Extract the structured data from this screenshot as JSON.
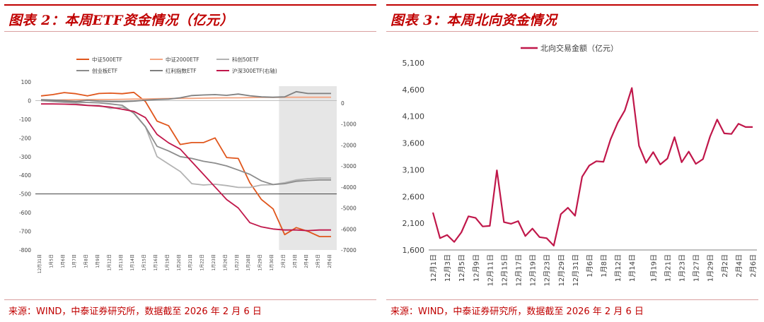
{
  "panels": {
    "left": {
      "title": "图表 2：本周ETF资金情况（亿元）"
    },
    "right": {
      "title": "图表 3：本周北向资金情况"
    }
  },
  "footer": {
    "source": "来源：WIND，中泰证券研究所，数据截至 2026 年 2 月 6 日"
  },
  "colors": {
    "accent": "#c00000",
    "divider": "#d9a0a0",
    "shade": "#e6e6e6"
  },
  "chart_data": [
    {
      "type": "line",
      "title": "",
      "x": [
        "12月31日",
        "1月5日",
        "1月6日",
        "1月7日",
        "1月8日",
        "1月9日",
        "1月12日",
        "1月13日",
        "1月14日",
        "1月15日",
        "1月16日",
        "1月19日",
        "1月20日",
        "1月21日",
        "1月22日",
        "1月23日",
        "1月26日",
        "1月27日",
        "1月28日",
        "1月29日",
        "1月30日",
        "2月2日",
        "2月3日",
        "2月4日",
        "2月5日",
        "2月6日"
      ],
      "y_left": {
        "ylim": [
          -800,
          100
        ],
        "ticks": [
          100,
          0,
          -100,
          -200,
          -300,
          -400,
          -500,
          -600,
          -700,
          -800
        ]
      },
      "y_right": {
        "ylim": [
          -7000,
          1000
        ],
        "ticks": [
          0,
          -1000,
          -2000,
          -3000,
          -4000,
          -5000,
          -6000,
          -7000
        ]
      },
      "shaded_x_range": [
        "2月2日",
        "2月6日"
      ],
      "legend_position": "top",
      "series": [
        {
          "name": "中证500ETF",
          "axis": "left",
          "color": "#e0561c",
          "values": [
            25,
            32,
            43,
            37,
            25,
            38,
            40,
            37,
            44,
            -5,
            -110,
            -135,
            -235,
            -225,
            -225,
            -200,
            -305,
            -310,
            -440,
            -530,
            -580,
            -718,
            -680,
            -700,
            -728,
            -728
          ]
        },
        {
          "name": "中证2000ETF",
          "axis": "left",
          "color": "#f4a582",
          "values": [
            0,
            2,
            4,
            5,
            5,
            6,
            6,
            7,
            8,
            9,
            10,
            11,
            12,
            12,
            13,
            14,
            15,
            15,
            16,
            17,
            17,
            18,
            18,
            18,
            18,
            18
          ]
        },
        {
          "name": "科创50ETF",
          "axis": "left",
          "color": "#b3b3b3",
          "values": [
            0,
            -5,
            -10,
            -15,
            -25,
            -25,
            -42,
            -35,
            -65,
            -140,
            -300,
            -340,
            -380,
            -445,
            -452,
            -448,
            -455,
            -465,
            -465,
            -452,
            -450,
            -440,
            -425,
            -418,
            -415,
            -415
          ]
        },
        {
          "name": "创业板ETF",
          "axis": "left",
          "color": "#8c8c8c",
          "values": [
            0,
            -2,
            -5,
            -8,
            -10,
            -12,
            -18,
            -25,
            -68,
            -140,
            -245,
            -270,
            -300,
            -310,
            -325,
            -335,
            -350,
            -372,
            -395,
            -430,
            -450,
            -445,
            -432,
            -428,
            -425,
            -425
          ]
        },
        {
          "name": "红利指数ETF",
          "axis": "left",
          "color": "#7f7f7f",
          "values": [
            5,
            3,
            0,
            -5,
            2,
            -3,
            -5,
            -6,
            -3,
            2,
            6,
            8,
            15,
            27,
            30,
            32,
            28,
            35,
            26,
            20,
            18,
            20,
            48,
            38,
            38,
            38
          ]
        },
        {
          "name": "沪深300ETF(右轴)",
          "axis": "right",
          "color": "#c0174a",
          "values": [
            -50,
            -50,
            -60,
            -80,
            -120,
            -150,
            -200,
            -300,
            -400,
            -700,
            -1500,
            -1900,
            -2200,
            -2800,
            -3400,
            -4000,
            -4600,
            -5000,
            -5700,
            -5900,
            -6000,
            -6050,
            -6050,
            -6080,
            -6050,
            -6050
          ]
        }
      ]
    },
    {
      "type": "line",
      "title": "",
      "x": [
        "12月1日",
        "12月2日",
        "12月3日",
        "12月4日",
        "12月5日",
        "12月8日",
        "12月9日",
        "12月10日",
        "12月11日",
        "12月12日",
        "12月15日",
        "12月16日",
        "12月17日",
        "12月18日",
        "12月19日",
        "12月22日",
        "12月23日",
        "12月24日",
        "12月29日",
        "12月30日",
        "12月31日",
        "1月5日",
        "1月6日",
        "1月7日",
        "1月8日",
        "1月9日",
        "1月12日",
        "1月13日",
        "1月14日",
        "1月15日",
        "1月16日",
        "1月19日",
        "1月20日",
        "1月21日",
        "1月22日",
        "1月23日",
        "1月26日",
        "1月27日",
        "1月28日",
        "1月29日",
        "1月30日",
        "2月2日",
        "2月3日",
        "2月4日",
        "2月5日",
        "2月6日"
      ],
      "x_tick_labels": [
        "12月1日",
        "12月3日",
        "12月5日",
        "12月9日",
        "12月11日",
        "12月15日",
        "12月17日",
        "12月19日",
        "12月23日",
        "12月29日",
        "12月31日",
        "1月6日",
        "1月8日",
        "1月12日",
        "1月14日",
        "1月19日",
        "1月21日",
        "1月23日",
        "1月27日",
        "1月29日",
        "2月2日",
        "2月4日",
        "2月6日"
      ],
      "ylim": [
        1600,
        5100
      ],
      "y_ticks": [
        1600,
        2100,
        2600,
        3100,
        3600,
        4100,
        4600,
        5100
      ],
      "y_tick_labels": [
        "1,600",
        "2,100",
        "2,600",
        "3,100",
        "3,600",
        "4,100",
        "4,600",
        "5,100"
      ],
      "legend_position": "top",
      "series": [
        {
          "name": "北向交易金额（亿元）",
          "color": "#c0174a",
          "values": [
            2300,
            1820,
            1880,
            1750,
            1930,
            2230,
            2200,
            2040,
            2050,
            3090,
            2120,
            2090,
            2140,
            1860,
            2000,
            1840,
            1820,
            1680,
            2270,
            2390,
            2240,
            2970,
            3180,
            3260,
            3250,
            3670,
            3980,
            4210,
            4630,
            3550,
            3230,
            3430,
            3200,
            3310,
            3710,
            3240,
            3440,
            3210,
            3300,
            3720,
            4040,
            3780,
            3770,
            3960,
            3900,
            3900
          ]
        }
      ]
    }
  ]
}
